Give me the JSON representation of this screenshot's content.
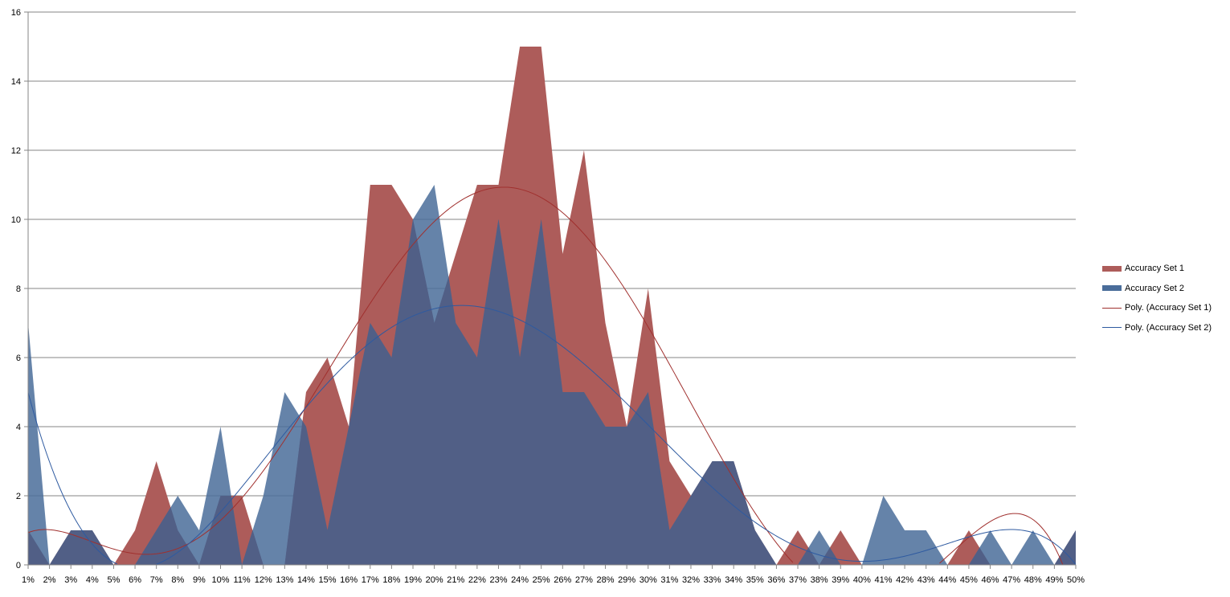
{
  "chart_data": {
    "type": "area",
    "categories": [
      "1%",
      "2%",
      "3%",
      "4%",
      "5%",
      "6%",
      "7%",
      "8%",
      "9%",
      "10%",
      "11%",
      "12%",
      "13%",
      "14%",
      "15%",
      "16%",
      "17%",
      "18%",
      "19%",
      "20%",
      "21%",
      "22%",
      "23%",
      "24%",
      "25%",
      "26%",
      "27%",
      "28%",
      "29%",
      "30%",
      "31%",
      "32%",
      "33%",
      "34%",
      "35%",
      "36%",
      "37%",
      "38%",
      "39%",
      "40%",
      "41%",
      "42%",
      "43%",
      "44%",
      "45%",
      "46%",
      "47%",
      "48%",
      "49%",
      "50%"
    ],
    "series": [
      {
        "name": "Accuracy Set 1",
        "color": "#ad5c5a",
        "values": [
          1,
          0,
          1,
          1,
          0,
          1,
          3,
          1,
          0,
          2,
          2,
          0,
          0,
          5,
          6,
          4,
          11,
          11,
          10,
          7,
          9,
          11,
          11,
          15,
          15,
          9,
          12,
          7,
          4,
          8,
          3,
          2,
          3,
          3,
          1,
          0,
          1,
          0,
          1,
          0,
          0,
          0,
          0,
          0,
          1,
          0,
          0,
          0,
          0,
          1
        ]
      },
      {
        "name": "Accuracy Set 2",
        "color": "#4a6d9a",
        "values": [
          7,
          0,
          1,
          1,
          0,
          0,
          1,
          2,
          1,
          4,
          0,
          2,
          5,
          4,
          1,
          4,
          7,
          6,
          10,
          11,
          7,
          6,
          10,
          6,
          10,
          5,
          5,
          4,
          4,
          5,
          1,
          2,
          3,
          3,
          1,
          0,
          0,
          1,
          0,
          0,
          2,
          1,
          1,
          0,
          0,
          1,
          0,
          1,
          0,
          1
        ]
      }
    ],
    "trendlines": [
      {
        "name": "Poly. (Accuracy Set 1)",
        "color": "#a0302e"
      },
      {
        "name": "Poly. (Accuracy Set 2)",
        "color": "#2e5aa0"
      }
    ],
    "overlap_color": "#515f86",
    "ylim": [
      0,
      16
    ],
    "yticks": [
      0,
      2,
      4,
      6,
      8,
      10,
      12,
      14,
      16
    ],
    "grid": true,
    "legend": "right",
    "title": "",
    "xlabel": "",
    "ylabel": ""
  }
}
